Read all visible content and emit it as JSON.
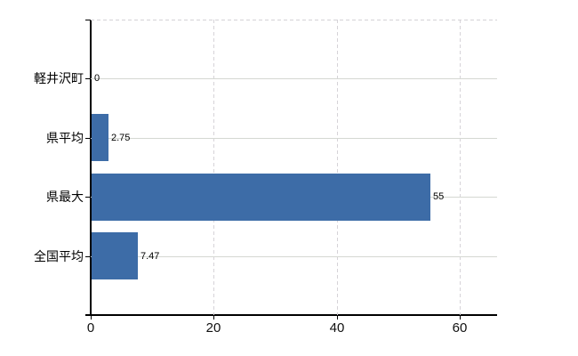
{
  "chart_data": {
    "type": "bar",
    "orientation": "horizontal",
    "title": "",
    "xlabel": "",
    "ylabel": "",
    "categories": [
      "軽井沢町",
      "県平均",
      "県最大",
      "全国平均"
    ],
    "values": [
      0,
      2.75,
      55,
      7.47
    ],
    "value_labels": [
      "0",
      "2.75",
      "55",
      "7.47"
    ],
    "xlim": [
      0,
      66
    ],
    "xticks": [
      0,
      20,
      40,
      60
    ],
    "xtick_labels": [
      "0",
      "20",
      "40",
      "60"
    ],
    "legend": "none",
    "grid": {
      "horizontal_lines": "solid, one per category row center",
      "vertical_lines": "dashed, at x ticks 20/40/60",
      "top_border": "dashed"
    },
    "colors": {
      "bar": "#3d6ca7",
      "axis": "#000000",
      "grid_horizontal": "#d5d8d2",
      "grid_vertical": "#d6d3d8",
      "text": "#000000"
    },
    "background": "#ffffff"
  }
}
